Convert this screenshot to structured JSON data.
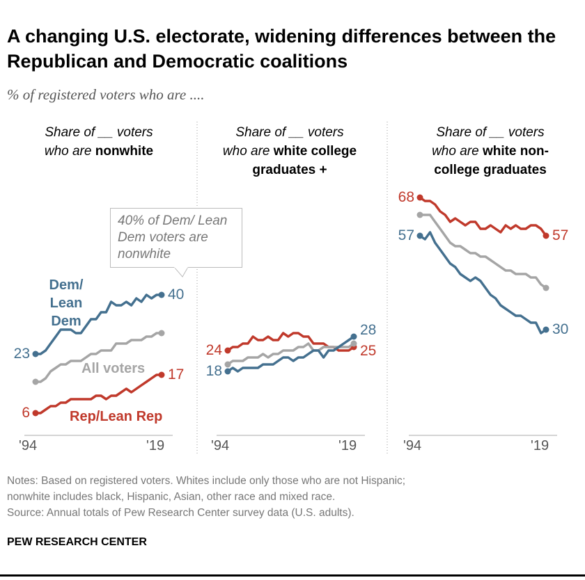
{
  "title": "A changing U.S. electorate, widening differences between the Republican and Democratic coalitions",
  "subtitle": "% of registered voters who are ....",
  "colors": {
    "dem": "#44708f",
    "rep": "#c0392b",
    "all": "#a5a5a5"
  },
  "callout": "40% of Dem/ Lean Dem voters are nonwhite",
  "notes": [
    "Notes: Based on registered voters. Whites include only those who are not Hispanic;",
    "nonwhite includes black, Hispanic, Asian, other race and mixed race.",
    "Source: Annual totals of Pew Research Center survey data (U.S. adults)."
  ],
  "brand": "PEW RESEARCH CENTER",
  "series_labels": {
    "dem_line1": "Dem/",
    "dem_line2": "Lean Dem",
    "all": "All voters",
    "rep": "Rep/Lean Rep"
  },
  "chart_data": [
    {
      "type": "line",
      "title_line1": "Share of __ voters",
      "title_line2_prefix": "who are ",
      "title_bold": "nonwhite",
      "title_line3": "",
      "x": [
        1994,
        1995,
        1996,
        1997,
        1998,
        1999,
        2000,
        2001,
        2002,
        2003,
        2004,
        2005,
        2006,
        2007,
        2008,
        2009,
        2010,
        2011,
        2012,
        2013,
        2014,
        2015,
        2016,
        2017,
        2018,
        2019
      ],
      "xticks": [
        "'94",
        "'19"
      ],
      "series": [
        {
          "key": "dem",
          "values": [
            23,
            23,
            24,
            26,
            28,
            30,
            30,
            30,
            29,
            29,
            31,
            33,
            33,
            35,
            35,
            38,
            37,
            37,
            38,
            37,
            39,
            38,
            40,
            39,
            40,
            40
          ],
          "start_label": "23",
          "end_label": "40"
        },
        {
          "key": "all",
          "values": [
            15,
            15,
            16,
            18,
            19,
            20,
            20,
            21,
            21,
            21,
            22,
            23,
            23,
            24,
            24,
            24,
            26,
            26,
            26,
            27,
            27,
            27,
            28,
            28,
            29,
            29
          ]
        },
        {
          "key": "rep",
          "values": [
            6,
            6,
            7,
            8,
            8,
            9,
            9,
            10,
            10,
            10,
            10,
            10,
            11,
            11,
            10,
            11,
            11,
            12,
            13,
            12,
            13,
            14,
            15,
            16,
            17,
            17
          ],
          "start_label": "6",
          "end_label": "17"
        }
      ]
    },
    {
      "type": "line",
      "title_line1": "Share of __ voters",
      "title_line2_prefix": "who are ",
      "title_bold": "white college",
      "title_line3": "graduates +",
      "x": [
        1994,
        1995,
        1996,
        1997,
        1998,
        1999,
        2000,
        2001,
        2002,
        2003,
        2004,
        2005,
        2006,
        2007,
        2008,
        2009,
        2010,
        2011,
        2012,
        2013,
        2014,
        2015,
        2016,
        2017,
        2018,
        2019
      ],
      "xticks": [
        "'94",
        "'19"
      ],
      "series": [
        {
          "key": "rep",
          "values": [
            24,
            25,
            25,
            26,
            26,
            28,
            27,
            27,
            28,
            27,
            27,
            29,
            28,
            29,
            29,
            28,
            28,
            26,
            26,
            26,
            25,
            25,
            24,
            24,
            24,
            25
          ],
          "start_label": "24",
          "end_label": "25"
        },
        {
          "key": "all",
          "values": [
            20,
            21,
            21,
            21,
            22,
            22,
            22,
            23,
            22,
            23,
            23,
            24,
            24,
            24,
            25,
            25,
            26,
            24,
            24,
            25,
            25,
            25,
            25,
            25,
            25,
            26
          ]
        },
        {
          "key": "dem",
          "values": [
            18,
            19,
            18,
            19,
            19,
            19,
            19,
            20,
            20,
            20,
            21,
            22,
            22,
            21,
            22,
            22,
            23,
            24,
            24,
            22,
            24,
            24,
            25,
            26,
            27,
            28
          ],
          "start_label": "18",
          "end_label": "28"
        }
      ]
    },
    {
      "type": "line",
      "title_line1": "Share of __ voters",
      "title_line2_prefix": "who are ",
      "title_bold": "white non-",
      "title_line3": "college graduates",
      "x": [
        1994,
        1995,
        1996,
        1997,
        1998,
        1999,
        2000,
        2001,
        2002,
        2003,
        2004,
        2005,
        2006,
        2007,
        2008,
        2009,
        2010,
        2011,
        2012,
        2013,
        2014,
        2015,
        2016,
        2017,
        2018,
        2019
      ],
      "xticks": [
        "'94",
        "'19"
      ],
      "series": [
        {
          "key": "rep",
          "values": [
            68,
            67,
            67,
            66,
            64,
            63,
            61,
            62,
            61,
            60,
            61,
            61,
            59,
            59,
            60,
            59,
            58,
            60,
            59,
            60,
            59,
            59,
            60,
            60,
            59,
            57
          ],
          "start_label": "68",
          "end_label": "57"
        },
        {
          "key": "all",
          "values": [
            63,
            63,
            63,
            61,
            59,
            57,
            55,
            54,
            54,
            53,
            52,
            52,
            51,
            51,
            50,
            49,
            48,
            47,
            47,
            46,
            46,
            46,
            45,
            45,
            43,
            42
          ]
        },
        {
          "key": "dem",
          "values": [
            57,
            56,
            58,
            55,
            53,
            51,
            49,
            48,
            46,
            45,
            44,
            45,
            44,
            42,
            40,
            39,
            37,
            36,
            35,
            34,
            34,
            33,
            32,
            32,
            29,
            30
          ],
          "start_label": "57",
          "end_label": "30"
        }
      ]
    }
  ]
}
